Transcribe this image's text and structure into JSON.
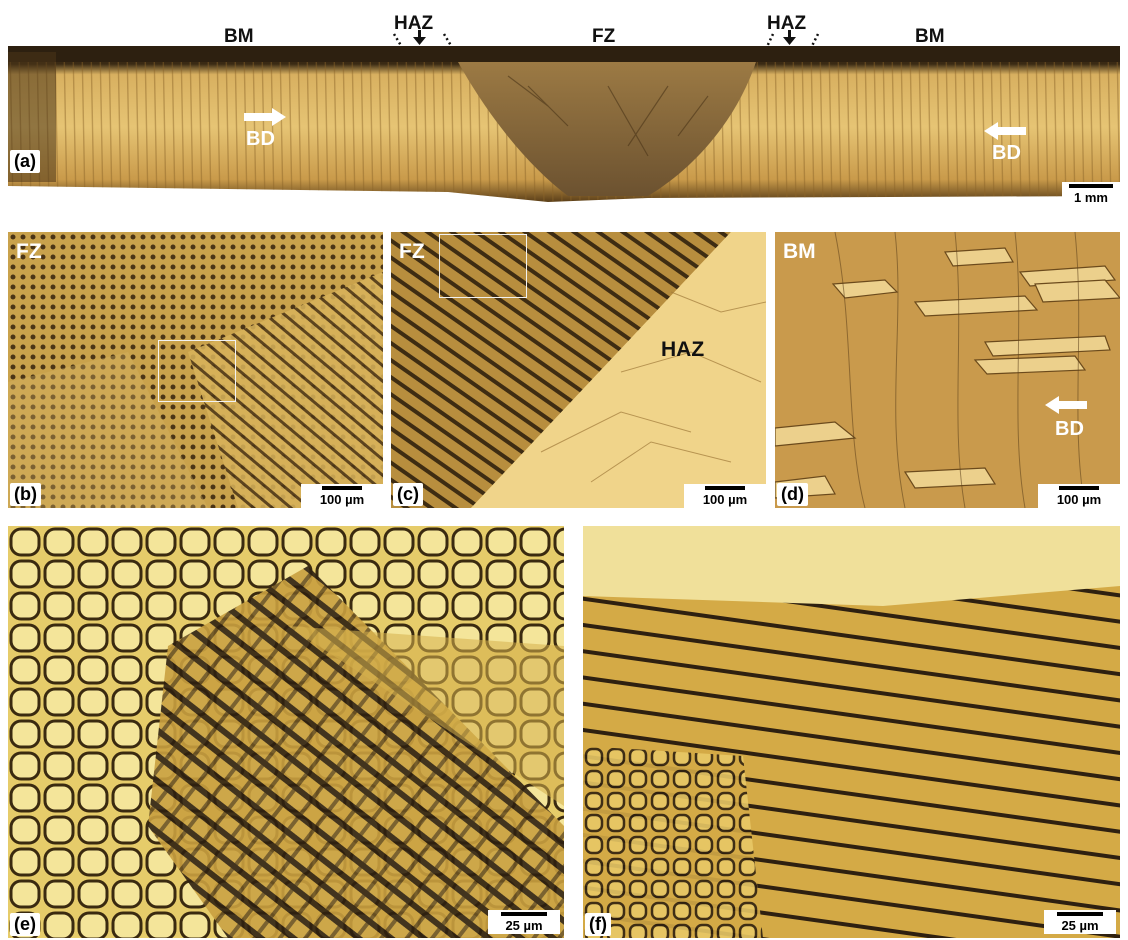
{
  "top_labels": {
    "bm_left": "BM",
    "haz_left": "HAZ",
    "fz": "FZ",
    "haz_right": "HAZ",
    "bm_right": "BM"
  },
  "panels": {
    "a": {
      "label": "(a)",
      "scale": "1 mm",
      "bd_left": "BD",
      "bd_right": "BD"
    },
    "b": {
      "label": "(b)",
      "zone": "FZ",
      "scale": "100 µm"
    },
    "c": {
      "label": "(c)",
      "zone": "FZ",
      "zone2": "HAZ",
      "scale": "100 µm"
    },
    "d": {
      "label": "(d)",
      "zone": "BM",
      "bd": "BD",
      "scale": "100 µm"
    },
    "e": {
      "label": "(e)",
      "scale": "25 µm"
    },
    "f": {
      "label": "(f)",
      "scale": "25 µm"
    }
  },
  "colors": {
    "metal_light": "#e8c46a",
    "metal_mid": "#c99a3e",
    "metal_dark": "#6b4a1c",
    "fz_dark": "#8a6a3a",
    "micro_bg": "#d9b04a"
  }
}
